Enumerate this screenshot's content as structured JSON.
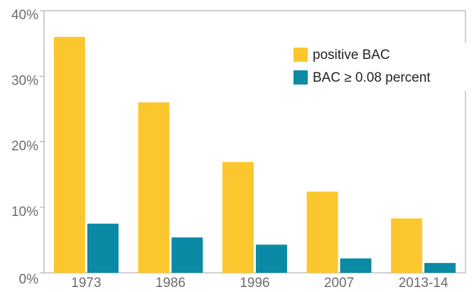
{
  "chart_data": {
    "type": "bar",
    "categories": [
      "1973",
      "1986",
      "1996",
      "2007",
      "2013-14"
    ],
    "series": [
      {
        "name": "positive BAC",
        "color": "#fcc72e",
        "values": [
          36,
          26,
          16.9,
          12.4,
          8.3
        ]
      },
      {
        "name": "BAC ≥ 0.08 percent",
        "color": "#0b8aa6",
        "values": [
          7.5,
          5.4,
          4.3,
          2.2,
          1.5
        ]
      }
    ],
    "ylim": [
      0,
      40
    ],
    "yticks": [
      {
        "value": 0,
        "label": "0%"
      },
      {
        "value": 10,
        "label": "10%"
      },
      {
        "value": 20,
        "label": "20%"
      },
      {
        "value": 30,
        "label": "30%"
      },
      {
        "value": 40,
        "label": "40%"
      }
    ],
    "legend": "upper right"
  }
}
